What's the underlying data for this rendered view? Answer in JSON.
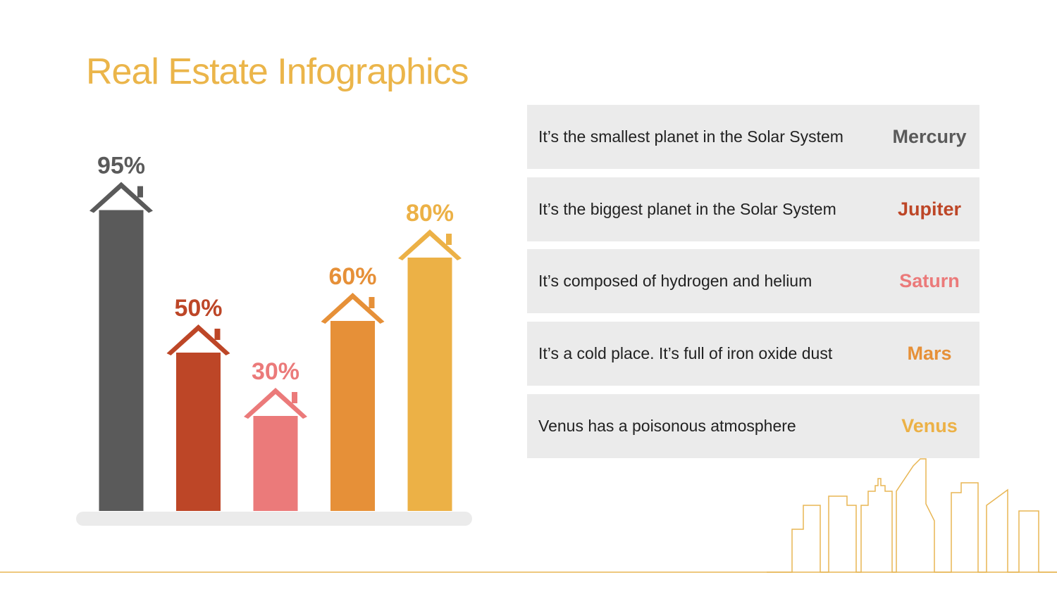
{
  "chart_data": {
    "type": "bar",
    "title": "Real Estate Infographics",
    "values": [
      95,
      50,
      30,
      60,
      80
    ],
    "value_labels": [
      "95%",
      "50%",
      "30%",
      "60%",
      "80%"
    ],
    "colors": [
      "#5a5a5a",
      "#bd4627",
      "#eb7a7a",
      "#e69038",
      "#ecb146"
    ]
  },
  "table": {
    "rows": [
      [
        "It’s the smallest planet in the Solar System",
        "Mercury"
      ],
      [
        "It’s the biggest planet in the Solar System",
        "Jupiter"
      ],
      [
        "It’s composed of hydrogen and helium",
        "Saturn"
      ],
      [
        "It’s a cold place. It’s full of iron oxide dust",
        "Mars"
      ],
      [
        "Venus has a poisonous atmosphere",
        "Venus"
      ]
    ]
  }
}
